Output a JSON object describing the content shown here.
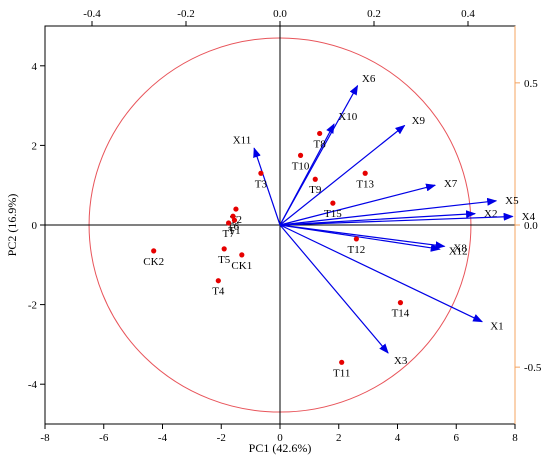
{
  "chart_data": {
    "type": "scatter",
    "xlabel": "PC1 (42.6%)",
    "ylabel": "PC2 (16.9%)",
    "xlim": [
      -8,
      8
    ],
    "ylim": [
      -5,
      5
    ],
    "xticks": [
      -8,
      -6,
      -4,
      -2,
      0,
      2,
      4,
      6,
      8
    ],
    "yticks": [
      -4,
      -2,
      0,
      2,
      4
    ],
    "top_axis": {
      "lim": [
        -0.5,
        0.5
      ],
      "ticks": [
        -0.4,
        -0.2,
        0.0,
        0.2,
        0.4
      ],
      "tick_labels": [
        "-0.4",
        "-0.2",
        "0.0",
        "0.2",
        "0.4"
      ]
    },
    "right_axis": {
      "lim": [
        -0.7,
        0.7
      ],
      "ticks": [
        0.5,
        0.0,
        -0.5
      ],
      "tick_labels": [
        "0.5",
        "0.0",
        "-0.5"
      ],
      "color": "#F4A460"
    },
    "circle": {
      "center": [
        0,
        0
      ],
      "rx": 6.5,
      "ry": 4.7,
      "color": "#E8545A"
    },
    "points": {
      "color": "#E60000",
      "items": [
        {
          "label": "CK2",
          "x": -4.3,
          "y": -0.65
        },
        {
          "label": "T2",
          "x": -1.5,
          "y": 0.4
        },
        {
          "label": "T6",
          "x": -1.6,
          "y": 0.22
        },
        {
          "label": "T1",
          "x": -1.55,
          "y": 0.12
        },
        {
          "label": "T7",
          "x": -1.75,
          "y": 0.05
        },
        {
          "label": "T5",
          "x": -1.9,
          "y": -0.6
        },
        {
          "label": "CK1",
          "x": -1.3,
          "y": -0.75
        },
        {
          "label": "T4",
          "x": -2.1,
          "y": -1.4
        },
        {
          "label": "T3",
          "x": -0.65,
          "y": 1.3
        },
        {
          "label": "T10",
          "x": 0.7,
          "y": 1.75
        },
        {
          "label": "T8",
          "x": 1.35,
          "y": 2.3
        },
        {
          "label": "T9",
          "x": 1.2,
          "y": 1.15
        },
        {
          "label": "T15",
          "x": 1.8,
          "y": 0.55
        },
        {
          "label": "T13",
          "x": 2.9,
          "y": 1.3
        },
        {
          "label": "T12",
          "x": 2.6,
          "y": -0.35
        },
        {
          "label": "T14",
          "x": 4.1,
          "y": -1.95
        },
        {
          "label": "T11",
          "x": 2.1,
          "y": -3.45
        }
      ]
    },
    "loadings": {
      "color": "#0000E6",
      "items": [
        {
          "label": "X1",
          "x": 0.43,
          "y": -0.34
        },
        {
          "label": "X2",
          "x": 0.415,
          "y": 0.04
        },
        {
          "label": "X3",
          "x": 0.23,
          "y": -0.45
        },
        {
          "label": "X4",
          "x": 0.495,
          "y": 0.03
        },
        {
          "label": "X5",
          "x": 0.46,
          "y": 0.085
        },
        {
          "label": "X6",
          "x": 0.165,
          "y": 0.49
        },
        {
          "label": "X7",
          "x": 0.33,
          "y": 0.14
        },
        {
          "label": "X8",
          "x": 0.35,
          "y": -0.075
        },
        {
          "label": "X9",
          "x": 0.265,
          "y": 0.35
        },
        {
          "label": "X10",
          "x": 0.115,
          "y": 0.355
        },
        {
          "label": "X11",
          "x": -0.055,
          "y": 0.27
        },
        {
          "label": "X12",
          "x": 0.34,
          "y": -0.085
        }
      ]
    }
  }
}
